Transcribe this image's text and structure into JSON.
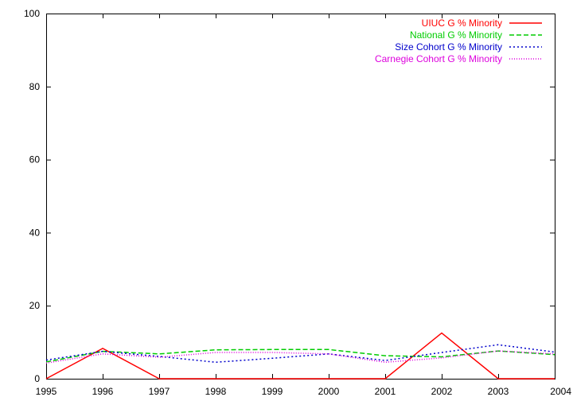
{
  "chart_data": {
    "type": "line",
    "x": [
      1995,
      1996,
      1997,
      1998,
      1999,
      2000,
      2001,
      2002,
      2003,
      2004
    ],
    "xlim": [
      1995,
      2004
    ],
    "ylim": [
      0,
      100
    ],
    "xticks": [
      "1995",
      "1996",
      "1997",
      "1998",
      "1999",
      "2000",
      "2001",
      "2002",
      "2003",
      "2004"
    ],
    "yticks": [
      "0",
      "20",
      "40",
      "60",
      "80",
      "100"
    ],
    "grid": false,
    "legend_position": "top-right",
    "series": [
      {
        "name": "UIUC G % Minority",
        "color": "#ff0000",
        "dash": "solid",
        "values": [
          0,
          8.3,
          0,
          0,
          0,
          0,
          0,
          12.5,
          0,
          0
        ]
      },
      {
        "name": "National G % Minority",
        "color": "#00cc00",
        "dash": "dashed",
        "values": [
          4.6,
          7.5,
          6.8,
          7.9,
          8.0,
          8.0,
          6.3,
          6.0,
          7.6,
          6.6
        ]
      },
      {
        "name": "Size Cohort G % Minority",
        "color": "#0000cc",
        "dash": "dotted",
        "values": [
          5.1,
          7.5,
          6.1,
          4.5,
          5.6,
          6.8,
          5.0,
          7.2,
          9.3,
          7.3
        ]
      },
      {
        "name": "Carnegie Cohort G % Minority",
        "color": "#dd00dd",
        "dash": "dotted-fine",
        "values": [
          4.3,
          6.8,
          5.9,
          7.2,
          7.2,
          6.8,
          4.5,
          5.7,
          7.6,
          6.8
        ]
      }
    ]
  }
}
